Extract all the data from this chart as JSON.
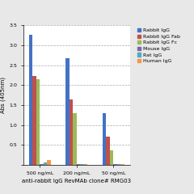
{
  "title": "",
  "xlabel": "anti-rabbit IgG RevMAb clone# RMG03",
  "ylabel": "Abs (405nm)",
  "groups": [
    "500 ng/mL",
    "200 ng/mL",
    "50 ng/mL"
  ],
  "series": [
    {
      "label": "Rabbit IgG",
      "color": "#4472C4",
      "values": [
        3.27,
        2.67,
        1.3
      ]
    },
    {
      "label": "Rabbit IgG Fab",
      "color": "#C0504D",
      "values": [
        2.22,
        1.64,
        0.7
      ]
    },
    {
      "label": "Rabbit IgG Fc",
      "color": "#9BBB59",
      "values": [
        2.15,
        1.29,
        0.37
      ]
    },
    {
      "label": "Mouse IgG",
      "color": "#8064A2",
      "values": [
        0.02,
        0.02,
        0.02
      ]
    },
    {
      "label": "Rat IgG",
      "color": "#4BACC6",
      "values": [
        0.06,
        0.02,
        0.02
      ]
    },
    {
      "label": "Human IgG",
      "color": "#F79646",
      "values": [
        0.13,
        0.02,
        0.02
      ]
    }
  ],
  "ylim": [
    0,
    3.5
  ],
  "yticks": [
    0,
    0.5,
    1.0,
    1.5,
    2.0,
    2.5,
    3.0,
    3.5
  ],
  "background_color": "#E8E8E8",
  "plot_bg_color": "#FFFFFF",
  "grid_color": "#AAAAAA",
  "axis_fontsize": 5.0,
  "tick_fontsize": 4.5,
  "legend_fontsize": 4.5
}
